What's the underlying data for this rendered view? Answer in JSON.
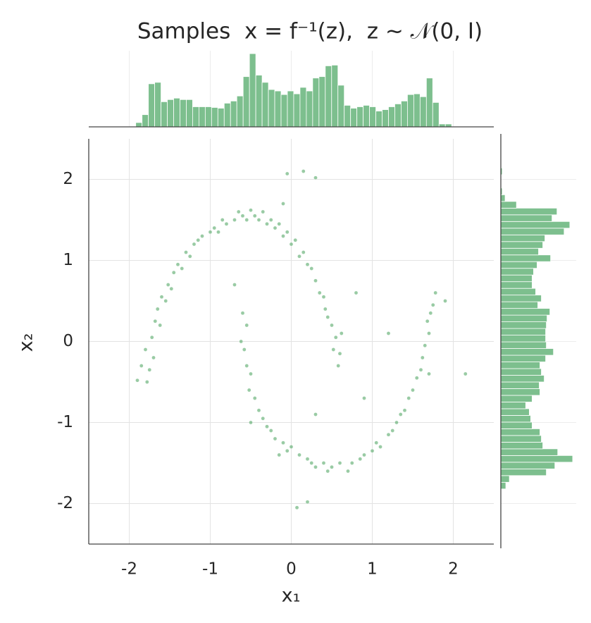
{
  "chart_data": {
    "type": "joint",
    "title": "Samples  x = f⁻¹(z),  z ~ 𝒩(0, I)",
    "xlabel": "x₁",
    "ylabel": "x₂",
    "color": "#55a868",
    "hist_color": "#7dbf8e",
    "grid": true,
    "xlim": [
      -2.5,
      2.5
    ],
    "ylim": [
      -2.5,
      2.5
    ],
    "xticks": [
      -2,
      -1,
      0,
      1,
      2
    ],
    "yticks": [
      -2,
      -1,
      0,
      1,
      2
    ],
    "x": [
      -1.9,
      -1.85,
      -1.8,
      -1.78,
      -1.75,
      -1.72,
      -1.7,
      -1.68,
      -1.65,
      -1.62,
      -1.6,
      -1.55,
      -1.52,
      -1.48,
      -1.45,
      -1.4,
      -1.35,
      -1.3,
      -1.25,
      -1.2,
      -1.15,
      -1.1,
      -1.0,
      -0.95,
      -0.9,
      -0.85,
      -0.8,
      -0.7,
      -0.65,
      -0.6,
      -0.55,
      -0.5,
      -0.45,
      -0.4,
      -0.35,
      -0.3,
      -0.25,
      -0.2,
      -0.15,
      -0.1,
      -0.05,
      0.0,
      0.05,
      0.1,
      0.15,
      0.2,
      0.25,
      0.3,
      0.35,
      0.4,
      0.42,
      0.45,
      0.5,
      0.55,
      0.52,
      0.6,
      0.58,
      0.62,
      -0.6,
      -0.55,
      -0.62,
      -0.58,
      -0.55,
      -0.5,
      -0.52,
      -0.45,
      -0.4,
      -0.35,
      -0.3,
      -0.25,
      -0.2,
      -0.1,
      -0.05,
      0.0,
      0.1,
      0.2,
      0.25,
      0.3,
      0.4,
      0.45,
      0.5,
      0.6,
      0.7,
      0.75,
      0.85,
      0.9,
      1.0,
      1.05,
      1.1,
      1.2,
      1.25,
      1.3,
      1.35,
      1.4,
      1.45,
      1.5,
      1.55,
      1.6,
      1.62,
      1.65,
      1.7,
      1.68,
      1.72,
      1.75,
      1.7,
      1.78,
      -0.05,
      0.15,
      0.3,
      0.2,
      0.07,
      -0.15,
      0.8,
      -0.7,
      1.2,
      0.9,
      1.9,
      2.15,
      -0.5,
      0.3,
      -0.1
    ],
    "y": [
      -0.48,
      -0.3,
      -0.1,
      -0.5,
      -0.35,
      0.05,
      -0.2,
      0.25,
      0.4,
      0.2,
      0.55,
      0.5,
      0.7,
      0.65,
      0.85,
      0.95,
      0.9,
      1.1,
      1.05,
      1.2,
      1.25,
      1.3,
      1.35,
      1.4,
      1.35,
      1.5,
      1.45,
      1.5,
      1.6,
      1.55,
      1.5,
      1.62,
      1.55,
      1.5,
      1.6,
      1.45,
      1.5,
      1.4,
      1.45,
      1.3,
      1.35,
      1.2,
      1.25,
      1.05,
      1.1,
      0.95,
      0.9,
      0.75,
      0.6,
      0.55,
      0.4,
      0.3,
      0.2,
      0.05,
      -0.1,
      -0.15,
      -0.3,
      0.1,
      0.35,
      0.2,
      0.0,
      -0.1,
      -0.3,
      -0.4,
      -0.6,
      -0.7,
      -0.85,
      -0.95,
      -1.05,
      -1.1,
      -1.2,
      -1.25,
      -1.35,
      -1.3,
      -1.4,
      -1.45,
      -1.5,
      -1.55,
      -1.5,
      -1.6,
      -1.55,
      -1.5,
      -1.6,
      -1.5,
      -1.45,
      -1.4,
      -1.35,
      -1.25,
      -1.3,
      -1.15,
      -1.1,
      -1.0,
      -0.9,
      -0.85,
      -0.7,
      -0.6,
      -0.45,
      -0.35,
      -0.2,
      -0.05,
      0.1,
      0.25,
      0.35,
      0.45,
      -0.4,
      0.6,
      2.07,
      2.1,
      2.02,
      -1.98,
      -2.05,
      -1.4,
      0.6,
      0.7,
      0.1,
      -0.7,
      0.5,
      -0.4,
      -1.0,
      -0.9,
      1.7
    ],
    "marginal_x": {
      "bins": [
        -1.92,
        -1.842,
        -1.764,
        -1.686,
        -1.608,
        -1.53,
        -1.452,
        -1.374,
        -1.296,
        -1.218,
        -1.14,
        -1.062,
        -0.984,
        -0.906,
        -0.828,
        -0.75,
        -0.672,
        -0.594,
        -0.516,
        -0.438,
        -0.36,
        -0.282,
        -0.204,
        -0.126,
        -0.048,
        0.03,
        0.108,
        0.186,
        0.264,
        0.342,
        0.42,
        0.498,
        0.576,
        0.654,
        0.732,
        0.81,
        0.888,
        0.966,
        1.044,
        1.122,
        1.2,
        1.278,
        1.356,
        1.434,
        1.512,
        1.59,
        1.668,
        1.746,
        1.824,
        1.902,
        1.98
      ],
      "counts": [
        6,
        17,
        60,
        62,
        35,
        38,
        40,
        38,
        38,
        28,
        28,
        28,
        27,
        26,
        33,
        36,
        43,
        70,
        102,
        72,
        62,
        52,
        50,
        45,
        50,
        46,
        55,
        50,
        68,
        70,
        85,
        86,
        58,
        30,
        26,
        28,
        30,
        28,
        22,
        24,
        28,
        32,
        36,
        45,
        46,
        42,
        68,
        34,
        4,
        4
      ],
      "countlim": [
        0,
        106
      ]
    },
    "marginal_y": {
      "bins": [
        -1.82,
        -1.7375,
        -1.655,
        -1.5725,
        -1.49,
        -1.4075,
        -1.325,
        -1.2425,
        -1.16,
        -1.0775,
        -0.995,
        -0.9125,
        -0.83,
        -0.7475,
        -0.665,
        -0.5825,
        -0.5,
        -0.4175,
        -0.335,
        -0.2525,
        -0.17,
        -0.0875,
        -0.005,
        0.0775,
        0.16,
        0.2425,
        0.325,
        0.4075,
        0.49,
        0.5725,
        0.655,
        0.7375,
        0.82,
        0.9025,
        0.985,
        1.0675,
        1.15,
        1.2325,
        1.315,
        1.3975,
        1.48,
        1.5625,
        1.645,
        1.7275,
        1.81,
        1.8925,
        1.975,
        2.0575,
        2.14
      ],
      "counts": [
        7,
        12,
        64,
        76,
        101,
        80,
        59,
        57,
        55,
        44,
        42,
        40,
        35,
        44,
        55,
        54,
        61,
        57,
        55,
        63,
        74,
        64,
        63,
        63,
        64,
        65,
        69,
        52,
        57,
        49,
        44,
        44,
        46,
        51,
        70,
        53,
        59,
        62,
        89,
        97,
        72,
        79,
        22,
        6,
        2,
        0,
        0,
        2
      ],
      "countlim": [
        0,
        106
      ]
    }
  }
}
